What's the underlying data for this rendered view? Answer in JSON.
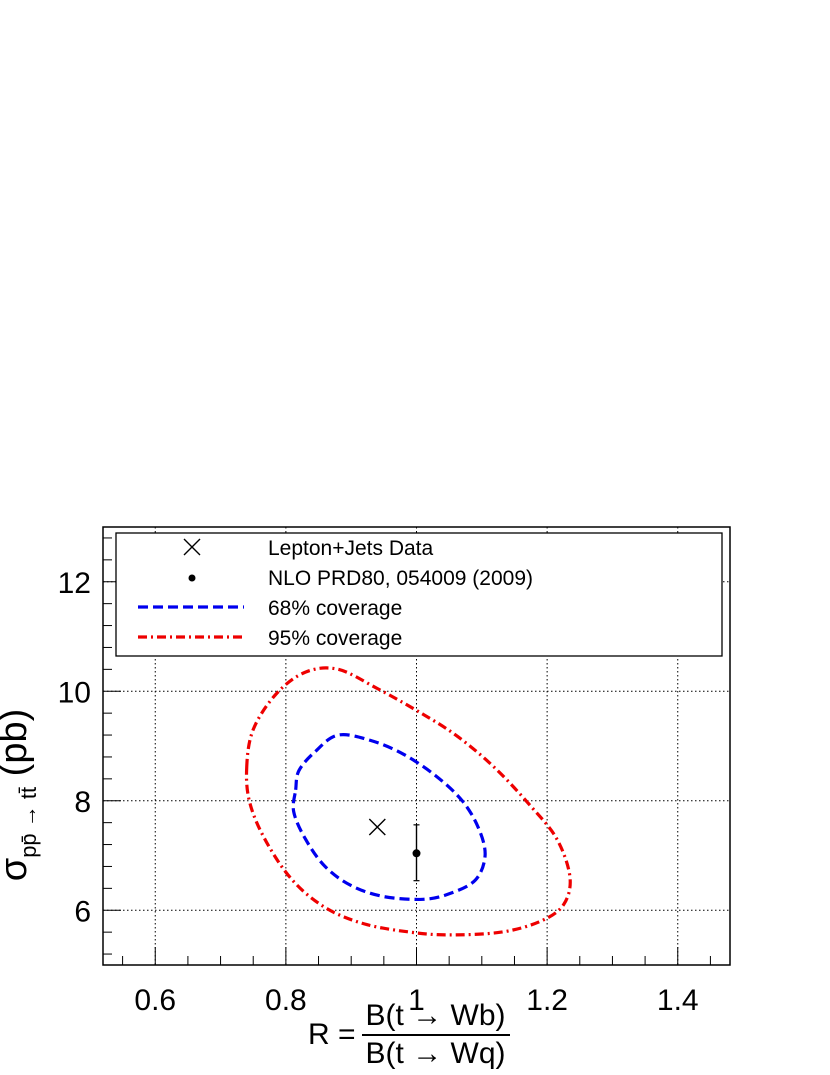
{
  "chart_data": {
    "type": "scatter",
    "xlabel": {
      "prefix": "R =",
      "numerator": "B(t → Wb)",
      "denominator": "B(t → Wq)"
    },
    "ylabel": {
      "main": "σ",
      "subscript": "pp̄ → tt̄",
      "unit": "(pb)"
    },
    "xlim": [
      0.52,
      1.48
    ],
    "ylim": [
      5.0,
      13.0
    ],
    "x_ticks": [
      0.6,
      0.8,
      1.0,
      1.2,
      1.4
    ],
    "x_tick_labels": [
      "0.6",
      "0.8",
      "1",
      "1.2",
      "1.4"
    ],
    "y_ticks": [
      6,
      8,
      10,
      12
    ],
    "y_tick_labels": [
      "6",
      "8",
      "10",
      "12"
    ],
    "grid": true,
    "legend_position": "top",
    "data_point": {
      "label": "Lepton+Jets Data",
      "x": 0.94,
      "y": 7.52,
      "marker": "x"
    },
    "theory_point": {
      "label": "NLO PRD80, 054009 (2009)",
      "x": 1.0,
      "y": 7.04,
      "yerr_low": 0.5,
      "yerr_high": 0.52,
      "marker": "dot"
    },
    "contours": [
      {
        "name": "68% coverage",
        "color": "#0000ee",
        "style": "dashed",
        "points": [
          [
            0.815,
            8.2
          ],
          [
            0.82,
            8.55
          ],
          [
            0.845,
            8.9
          ],
          [
            0.88,
            9.2
          ],
          [
            0.93,
            9.1
          ],
          [
            0.98,
            8.85
          ],
          [
            1.03,
            8.45
          ],
          [
            1.07,
            8.0
          ],
          [
            1.095,
            7.5
          ],
          [
            1.105,
            7.0
          ],
          [
            1.09,
            6.55
          ],
          [
            1.05,
            6.3
          ],
          [
            1.01,
            6.2
          ],
          [
            0.95,
            6.25
          ],
          [
            0.9,
            6.45
          ],
          [
            0.86,
            6.8
          ],
          [
            0.83,
            7.3
          ],
          [
            0.812,
            7.8
          ],
          [
            0.815,
            8.2
          ]
        ]
      },
      {
        "name": "95% coverage",
        "color": "#ee0000",
        "style": "dashdot",
        "points": [
          [
            0.74,
            8.6
          ],
          [
            0.75,
            9.3
          ],
          [
            0.785,
            9.95
          ],
          [
            0.83,
            10.35
          ],
          [
            0.88,
            10.4
          ],
          [
            0.94,
            10.05
          ],
          [
            1.0,
            9.65
          ],
          [
            1.06,
            9.2
          ],
          [
            1.12,
            8.6
          ],
          [
            1.175,
            7.9
          ],
          [
            1.215,
            7.3
          ],
          [
            1.235,
            6.6
          ],
          [
            1.225,
            6.1
          ],
          [
            1.19,
            5.8
          ],
          [
            1.13,
            5.6
          ],
          [
            1.05,
            5.55
          ],
          [
            0.99,
            5.6
          ],
          [
            0.92,
            5.75
          ],
          [
            0.86,
            6.05
          ],
          [
            0.81,
            6.55
          ],
          [
            0.77,
            7.25
          ],
          [
            0.745,
            7.95
          ],
          [
            0.74,
            8.6
          ]
        ]
      }
    ]
  }
}
